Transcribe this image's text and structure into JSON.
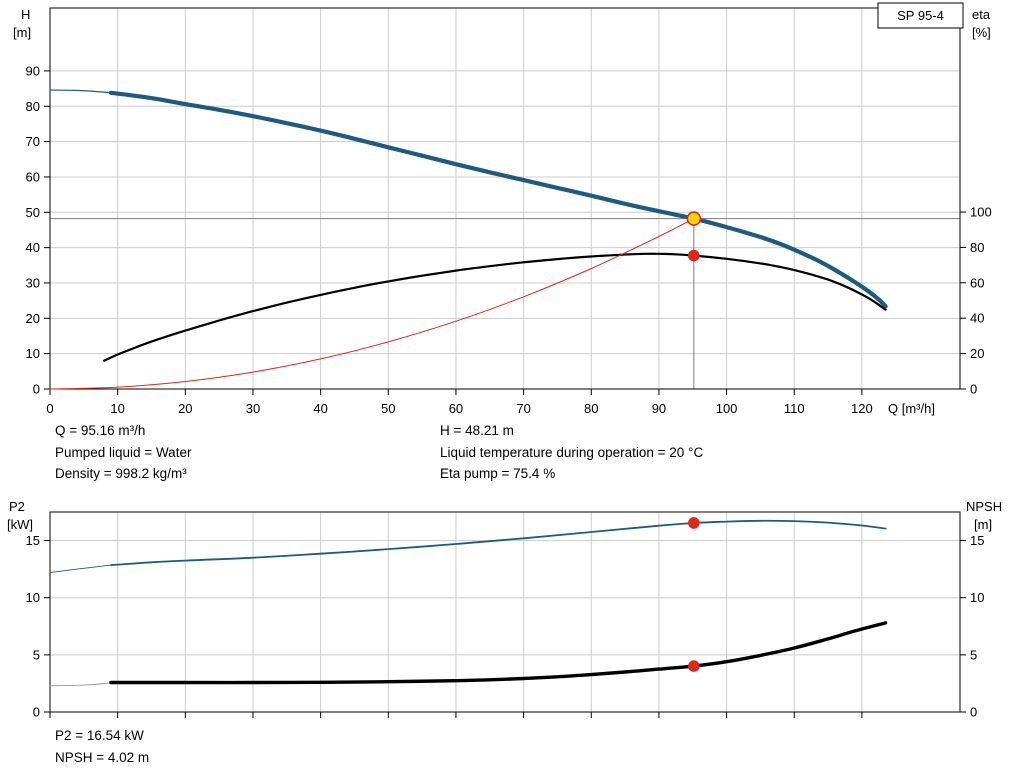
{
  "colors": {
    "curve_blue": "#1f5a80",
    "curve_black": "#000000",
    "curve_red": "#df271b",
    "marker_yellow": "#ffd500",
    "grid": "#cccccc",
    "crosshair": "#7d7d7d"
  },
  "annotations": {
    "top_left": [
      "Q = 95.16 m³/h",
      "Pumped liquid = Water",
      "Density = 998.2 kg/m³"
    ],
    "top_right": [
      "H = 48.21 m",
      "Liquid temperature during operation = 20 °C",
      "Eta pump = 75.4 %"
    ],
    "bottom": [
      "P2 = 16.54 kW",
      "NPSH = 4.02 m"
    ]
  },
  "chart_data": [
    {
      "type": "line",
      "title": "SP 95-4",
      "x": {
        "label": "Q [m³/h]",
        "min": 0,
        "max": 134.5,
        "ticks": [
          0,
          10,
          20,
          30,
          40,
          50,
          60,
          70,
          80,
          90,
          100,
          110,
          120
        ]
      },
      "y_left": {
        "label": [
          "H",
          "[m]"
        ],
        "min": 0,
        "max": 107.8,
        "ticks": [
          0,
          10,
          20,
          30,
          40,
          50,
          60,
          70,
          80,
          90
        ]
      },
      "y_right": {
        "label": [
          "eta",
          "[%]"
        ],
        "min": 0,
        "max": 215.3,
        "ticks": [
          0,
          20,
          40,
          60,
          80,
          100
        ]
      },
      "crosshair": {
        "x": 95.16,
        "y": 48.21
      },
      "series": [
        {
          "name": "head-curve-lowflow",
          "axis": "left",
          "color": "#1f5a80",
          "width": 1.2,
          "points": [
            [
              0,
              84.6
            ],
            [
              3,
              84.5
            ],
            [
              6,
              84.3
            ],
            [
              9,
              83.8
            ]
          ]
        },
        {
          "name": "head-curve",
          "axis": "left",
          "color": "#1f5a80",
          "width": 4.2,
          "points": [
            [
              9,
              83.8
            ],
            [
              12,
              83.1
            ],
            [
              16,
              82.0
            ],
            [
              20,
              80.6
            ],
            [
              25,
              79.0
            ],
            [
              30,
              77.2
            ],
            [
              35,
              75.2
            ],
            [
              40,
              73.1
            ],
            [
              45,
              70.8
            ],
            [
              50,
              68.4
            ],
            [
              55,
              66.0
            ],
            [
              60,
              63.6
            ],
            [
              65,
              61.3
            ],
            [
              70,
              59.1
            ],
            [
              75,
              56.9
            ],
            [
              80,
              54.7
            ],
            [
              85,
              52.4
            ],
            [
              90,
              50.3
            ],
            [
              95.16,
              48.21
            ],
            [
              100,
              45.8
            ],
            [
              105,
              43.0
            ],
            [
              108,
              41.0
            ],
            [
              110,
              39.4
            ],
            [
              113,
              36.8
            ],
            [
              115,
              34.8
            ],
            [
              117,
              32.6
            ],
            [
              119,
              30.2
            ],
            [
              121,
              27.6
            ],
            [
              122.5,
              25.3
            ],
            [
              123.5,
              23.4
            ]
          ]
        },
        {
          "name": "eta-curve",
          "axis": "right",
          "color": "#000000",
          "width": 2.2,
          "points": [
            [
              8,
              16
            ],
            [
              10,
              19.5
            ],
            [
              12,
              22.5
            ],
            [
              15,
              26.8
            ],
            [
              20,
              33
            ],
            [
              25,
              38.7
            ],
            [
              30,
              44
            ],
            [
              35,
              48.8
            ],
            [
              40,
              53.2
            ],
            [
              45,
              57.2
            ],
            [
              50,
              60.8
            ],
            [
              55,
              64
            ],
            [
              60,
              66.9
            ],
            [
              65,
              69.4
            ],
            [
              70,
              71.6
            ],
            [
              75,
              73.4
            ],
            [
              80,
              74.9
            ],
            [
              85,
              76
            ],
            [
              88,
              76.4
            ],
            [
              90,
              76.4
            ],
            [
              92,
              76.2
            ],
            [
              95.16,
              75.4
            ],
            [
              100,
              73.6
            ],
            [
              105,
              71
            ],
            [
              108,
              68.9
            ],
            [
              110,
              67.2
            ],
            [
              113,
              64.2
            ],
            [
              115,
              61.8
            ],
            [
              117,
              58.9
            ],
            [
              119,
              55.4
            ],
            [
              121,
              51.3
            ],
            [
              122.5,
              47.6
            ],
            [
              123.5,
              44.8
            ]
          ]
        },
        {
          "name": "system-curve",
          "axis": "left",
          "color": "#df271b",
          "width": 1,
          "points": [
            [
              0,
              0
            ],
            [
              10,
              0.53
            ],
            [
              20,
              2.13
            ],
            [
              30,
              4.79
            ],
            [
              40,
              8.52
            ],
            [
              50,
              13.32
            ],
            [
              60,
              19.18
            ],
            [
              70,
              26.1
            ],
            [
              80,
              34.09
            ],
            [
              90,
              43.14
            ],
            [
              95.16,
              48.21
            ]
          ]
        }
      ],
      "markers": [
        {
          "name": "duty-point",
          "x": 95.16,
          "y": 48.21,
          "axis": "left",
          "fill": "#ffd500",
          "stroke": "#df271b",
          "r": 6.5,
          "interactable": true
        },
        {
          "name": "eta-operating-point",
          "x": 95.16,
          "y": 75.4,
          "axis": "right",
          "fill": "#df271b",
          "stroke": "#df271b",
          "r": 5,
          "interactable": false
        }
      ]
    },
    {
      "type": "line",
      "title": "",
      "x": {
        "label": "",
        "min": 0,
        "max": 134.5,
        "ticks": [
          0,
          10,
          20,
          30,
          40,
          50,
          60,
          70,
          80,
          90,
          100,
          110,
          120
        ]
      },
      "y_left": {
        "label": [
          "P2",
          "[kW]"
        ],
        "min": 0,
        "max": 17.5,
        "ticks": [
          0,
          5,
          10,
          15
        ]
      },
      "y_right": {
        "label": [
          "NPSH",
          "[m]"
        ],
        "min": 0,
        "max": 17.5,
        "ticks": [
          0,
          5,
          10,
          15
        ]
      },
      "series": [
        {
          "name": "p2-curve-lowflow",
          "axis": "left",
          "color": "#1f5a80",
          "width": 0.9,
          "points": [
            [
              0,
              12.2
            ],
            [
              4,
              12.5
            ],
            [
              9,
              12.85
            ]
          ]
        },
        {
          "name": "p2-curve",
          "axis": "left",
          "color": "#1f5a80",
          "width": 1.8,
          "points": [
            [
              9,
              12.85
            ],
            [
              15,
              13.1
            ],
            [
              20,
              13.25
            ],
            [
              30,
              13.5
            ],
            [
              40,
              13.85
            ],
            [
              50,
              14.25
            ],
            [
              60,
              14.7
            ],
            [
              70,
              15.2
            ],
            [
              80,
              15.75
            ],
            [
              90,
              16.3
            ],
            [
              95.16,
              16.54
            ],
            [
              100,
              16.66
            ],
            [
              105,
              16.73
            ],
            [
              110,
              16.7
            ],
            [
              115,
              16.57
            ],
            [
              120,
              16.32
            ],
            [
              123.5,
              16.05
            ]
          ]
        },
        {
          "name": "npsh-curve-lowflow",
          "axis": "right",
          "color": "#9a9a9a",
          "width": 0.9,
          "points": [
            [
              0,
              2.3
            ],
            [
              5,
              2.35
            ],
            [
              9,
              2.55
            ]
          ]
        },
        {
          "name": "npsh-curve",
          "axis": "right",
          "color": "#000000",
          "width": 3.4,
          "points": [
            [
              9,
              2.58
            ],
            [
              15,
              2.58
            ],
            [
              20,
              2.58
            ],
            [
              30,
              2.58
            ],
            [
              40,
              2.6
            ],
            [
              50,
              2.65
            ],
            [
              60,
              2.74
            ],
            [
              65,
              2.82
            ],
            [
              70,
              2.93
            ],
            [
              75,
              3.08
            ],
            [
              80,
              3.27
            ],
            [
              85,
              3.5
            ],
            [
              90,
              3.75
            ],
            [
              95.16,
              4.02
            ],
            [
              100,
              4.4
            ],
            [
              105,
              4.95
            ],
            [
              110,
              5.6
            ],
            [
              115,
              6.4
            ],
            [
              119,
              7.1
            ],
            [
              123.5,
              7.8
            ]
          ]
        }
      ],
      "markers": [
        {
          "name": "p2-operating-point",
          "x": 95.16,
          "y": 16.54,
          "axis": "left",
          "fill": "#df271b",
          "stroke": "#df271b",
          "r": 5,
          "interactable": false
        },
        {
          "name": "npsh-operating-point",
          "x": 95.16,
          "y": 4.02,
          "axis": "right",
          "fill": "#df271b",
          "stroke": "#df271b",
          "r": 5,
          "interactable": false
        }
      ]
    }
  ]
}
